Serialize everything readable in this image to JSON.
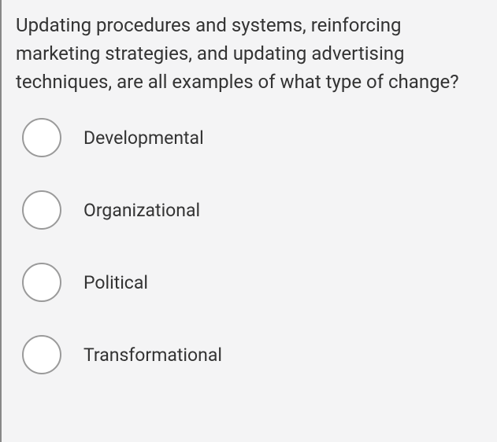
{
  "question": {
    "text": "Updating procedures and systems, reinforcing marketing strategies, and updating advertising techniques, are all examples of what type of change?",
    "text_color": "#333333",
    "font_size": 24,
    "background_color": "#f4f4f5"
  },
  "options": [
    {
      "label": "Developmental",
      "selected": false
    },
    {
      "label": "Organizational",
      "selected": false
    },
    {
      "label": "Political",
      "selected": false
    },
    {
      "label": "Transformational",
      "selected": false
    }
  ],
  "radio_style": {
    "border_color": "#9a9a9a",
    "fill_color": "#ffffff",
    "size": 50
  }
}
